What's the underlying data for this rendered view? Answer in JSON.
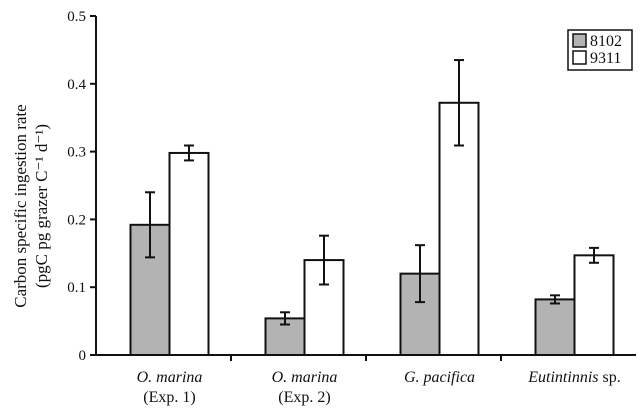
{
  "chart_data": {
    "type": "bar",
    "title": "",
    "ylabel_line1": "Carbon specific ingestion rate",
    "ylabel_line2": "(pgC pg grazer C⁻¹ d⁻¹)",
    "xlabel": "",
    "categories": [
      {
        "line1": "O. marina",
        "line2": "(Exp. 1)",
        "italic_part": "O. marina",
        "plain_part": ""
      },
      {
        "line1": "O. marina",
        "line2": "(Exp. 2)",
        "italic_part": "O. marina",
        "plain_part": ""
      },
      {
        "line1": "G. pacifica",
        "line2": "",
        "italic_part": "G. pacifica",
        "plain_part": ""
      },
      {
        "line1": "Eutintinnis sp.",
        "line2": "",
        "italic_part": "Eutintinnis",
        "plain_part": " sp."
      }
    ],
    "series": [
      {
        "name": "8102",
        "color": "#b3b3b3",
        "values": [
          0.192,
          0.054,
          0.12,
          0.082
        ],
        "errors": [
          0.048,
          0.009,
          0.042,
          0.006
        ]
      },
      {
        "name": "9311",
        "color": "#ffffff",
        "values": [
          0.298,
          0.14,
          0.372,
          0.147
        ],
        "errors": [
          0.011,
          0.036,
          0.063,
          0.011
        ]
      }
    ],
    "ylim": [
      0,
      0.5
    ],
    "yticks": [
      "0",
      "0.1",
      "0.2",
      "0.3",
      "0.4",
      "0.5"
    ],
    "ytick_values": [
      0,
      0.1,
      0.2,
      0.3,
      0.4,
      0.5
    ],
    "legend_position": "top-right",
    "grid": false
  }
}
